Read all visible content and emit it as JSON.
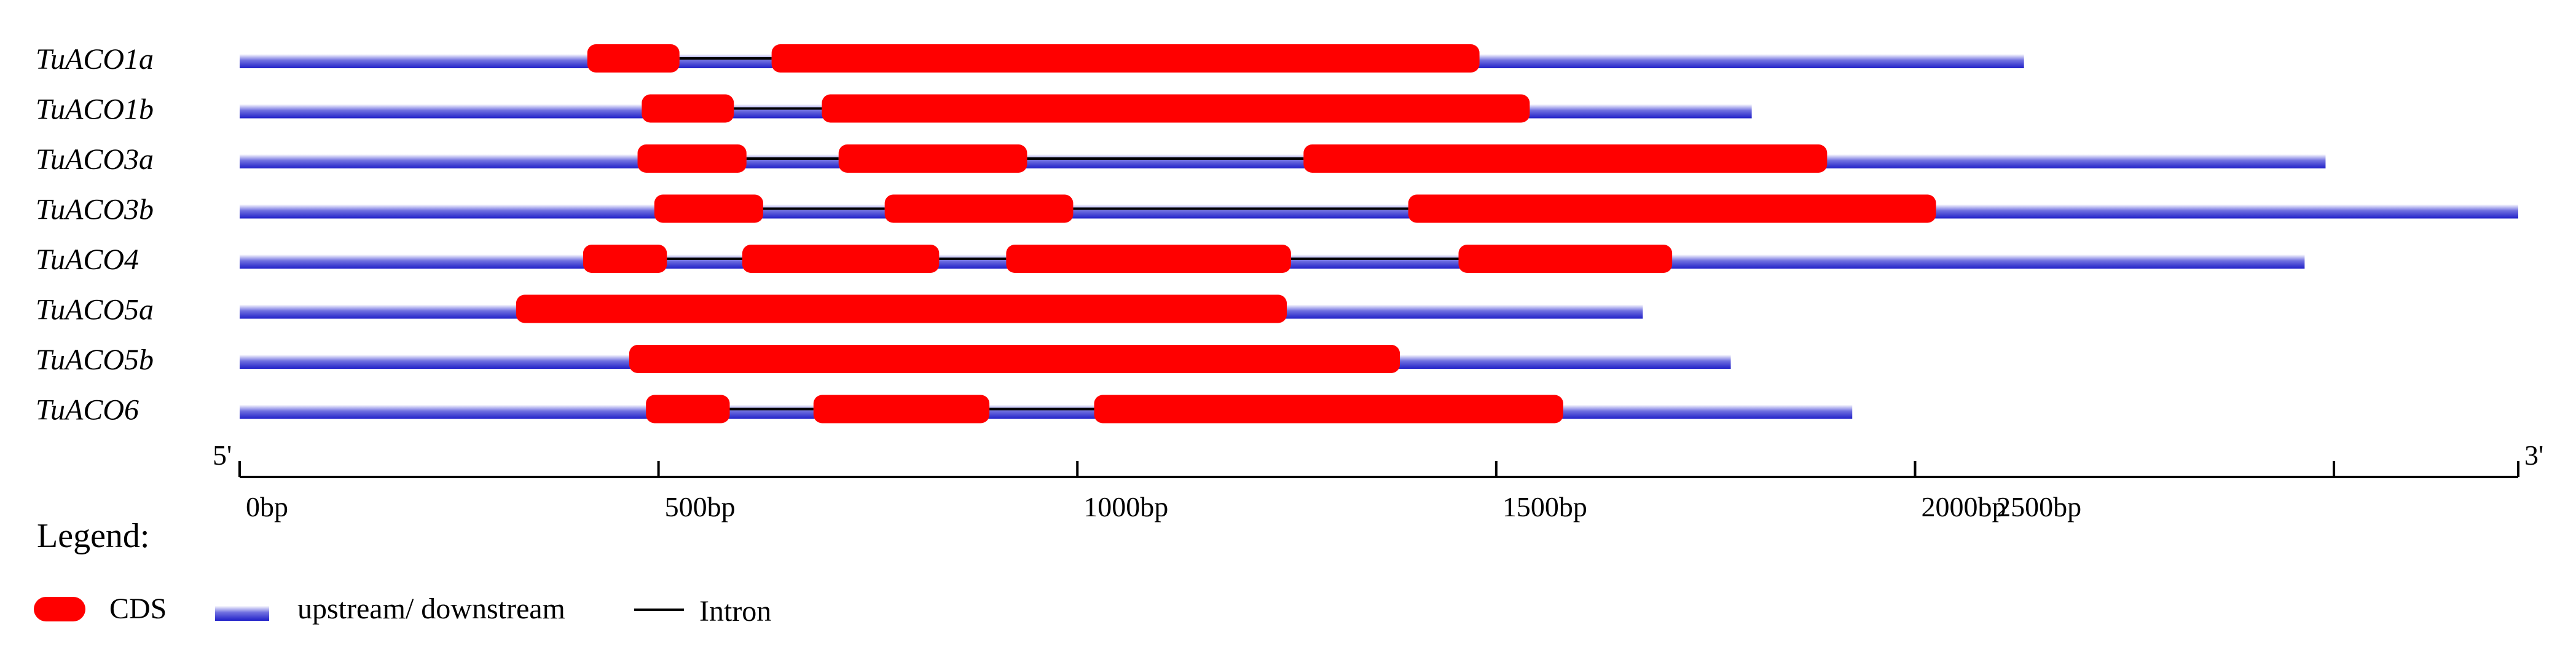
{
  "colors": {
    "cds": "#ff0000",
    "utr_edge": "#3030d0",
    "utr_center": "#ffffff",
    "intron": "#000000",
    "axis": "#000000"
  },
  "genes": [
    {
      "name": "TuACO1a",
      "utr": [
        0,
        2130
      ],
      "cds": [
        [
          415,
          525
        ],
        [
          635,
          1480
        ]
      ],
      "introns": [
        [
          525,
          635
        ]
      ]
    },
    {
      "name": "TuACO1b",
      "utr": [
        0,
        1805
      ],
      "cds": [
        [
          480,
          590
        ],
        [
          695,
          1540
        ]
      ],
      "introns": [
        [
          590,
          695
        ]
      ]
    },
    {
      "name": "TuACO3a",
      "utr": [
        0,
        2490
      ],
      "cds": [
        [
          475,
          605
        ],
        [
          715,
          940
        ],
        [
          1270,
          1895
        ]
      ],
      "introns": [
        [
          605,
          715
        ],
        [
          940,
          1270
        ]
      ]
    },
    {
      "name": "TuACO3b",
      "utr": [
        0,
        2720
      ],
      "cds": [
        [
          495,
          625
        ],
        [
          770,
          995
        ],
        [
          1395,
          2025
        ]
      ],
      "introns": [
        [
          625,
          770
        ],
        [
          995,
          1395
        ]
      ]
    },
    {
      "name": "TuACO4",
      "utr": [
        0,
        2465
      ],
      "cds": [
        [
          410,
          510
        ],
        [
          600,
          835
        ],
        [
          915,
          1255
        ],
        [
          1455,
          1710
        ]
      ],
      "introns": [
        [
          510,
          600
        ],
        [
          835,
          915
        ],
        [
          1255,
          1455
        ]
      ]
    },
    {
      "name": "TuACO5a",
      "utr": [
        0,
        1675
      ],
      "cds": [
        [
          330,
          1250
        ]
      ],
      "introns": []
    },
    {
      "name": "TuACO5b",
      "utr": [
        0,
        1780
      ],
      "cds": [
        [
          465,
          1385
        ]
      ],
      "introns": []
    },
    {
      "name": "TuACO6",
      "utr": [
        0,
        1925
      ],
      "cds": [
        [
          485,
          585
        ],
        [
          685,
          895
        ],
        [
          1020,
          1580
        ]
      ],
      "introns": [
        [
          585,
          685
        ],
        [
          895,
          1020
        ]
      ]
    }
  ],
  "axis": {
    "max_bp": 2720,
    "major_ticks": [
      0,
      500,
      1000,
      1500,
      2000,
      2500
    ],
    "tick_labels": [
      "0bp",
      "500bp",
      "1000bp",
      "1500bp",
      "2000bp",
      "2500bp"
    ],
    "label_offsets_bp": [
      0,
      0,
      0,
      0,
      0,
      -410
    ],
    "five_prime": "5'",
    "three_prime": "3'"
  },
  "legend": {
    "title": "Legend:",
    "cds": "CDS",
    "utr": "upstream/ downstream",
    "intron": "Intron"
  }
}
